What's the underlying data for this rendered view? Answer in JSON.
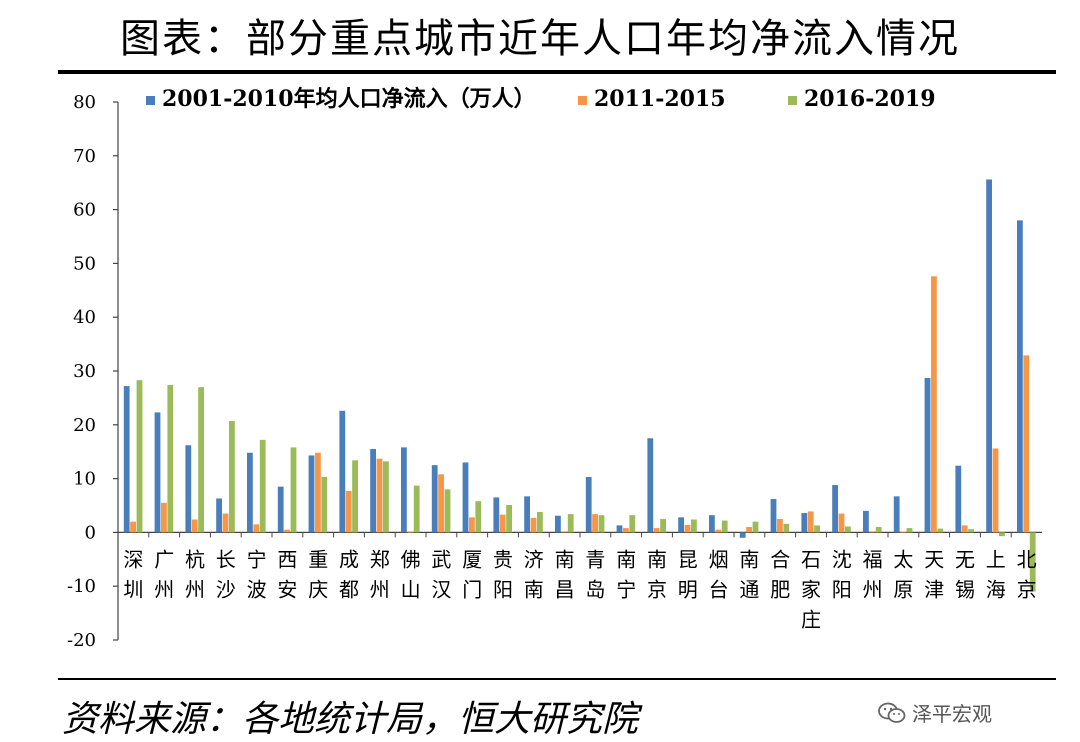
{
  "page": {
    "title": "图表：部分重点城市近年人口年均净流入情况",
    "source": "资料来源：各地统计局，恒大研究院",
    "brand": "泽平宏观",
    "brand_icon": "wechat-icon"
  },
  "chart_data": {
    "type": "bar",
    "title": "图表：部分重点城市近年人口年均净流入情况",
    "xlabel": "",
    "ylabel": "",
    "ylim": [
      -20,
      80
    ],
    "yticks": [
      -20,
      -10,
      0,
      10,
      20,
      30,
      40,
      50,
      60,
      70,
      80
    ],
    "grid": false,
    "legend_position": "top",
    "categories": [
      "深圳",
      "广州",
      "杭州",
      "长沙",
      "宁波",
      "西安",
      "重庆",
      "成都",
      "郑州",
      "佛山",
      "武汉",
      "厦门",
      "贵阳",
      "济南",
      "南昌",
      "青岛",
      "南宁",
      "南京",
      "昆明",
      "烟台",
      "南通",
      "合肥",
      "石家庄",
      "沈阳",
      "福州",
      "太原",
      "天津",
      "无锡",
      "上海",
      "北京"
    ],
    "series": [
      {
        "name": "2001-2010年均人口净流入（万人）",
        "color": "#4a7ebb",
        "values": [
          27.2,
          22.3,
          16.2,
          6.3,
          14.8,
          8.5,
          14.3,
          22.6,
          15.5,
          15.8,
          12.5,
          13.0,
          6.5,
          6.7,
          3.1,
          10.3,
          1.3,
          17.5,
          2.8,
          3.2,
          -1.0,
          6.2,
          3.6,
          8.8,
          4.0,
          6.7,
          28.7,
          12.4,
          65.6,
          58.0
        ]
      },
      {
        "name": "2011-2015",
        "color": "#f79646",
        "values": [
          2.0,
          5.5,
          2.4,
          3.5,
          1.5,
          0.5,
          14.8,
          7.7,
          13.7,
          0.0,
          10.8,
          2.8,
          3.3,
          2.7,
          0.2,
          3.4,
          0.8,
          0.8,
          1.4,
          0.5,
          1.0,
          2.5,
          3.9,
          3.5,
          0.2,
          0.0,
          47.6,
          1.3,
          15.6,
          32.9
        ]
      },
      {
        "name": "2016-2019",
        "color": "#9bbb59",
        "values": [
          28.3,
          27.4,
          27.0,
          20.7,
          17.2,
          15.8,
          10.3,
          13.4,
          13.2,
          8.7,
          8.0,
          5.8,
          5.1,
          3.8,
          3.4,
          3.2,
          3.2,
          2.5,
          2.4,
          2.2,
          2.0,
          1.6,
          1.3,
          1.1,
          1.0,
          0.8,
          0.7,
          0.6,
          -0.7,
          -11.0
        ]
      }
    ]
  }
}
